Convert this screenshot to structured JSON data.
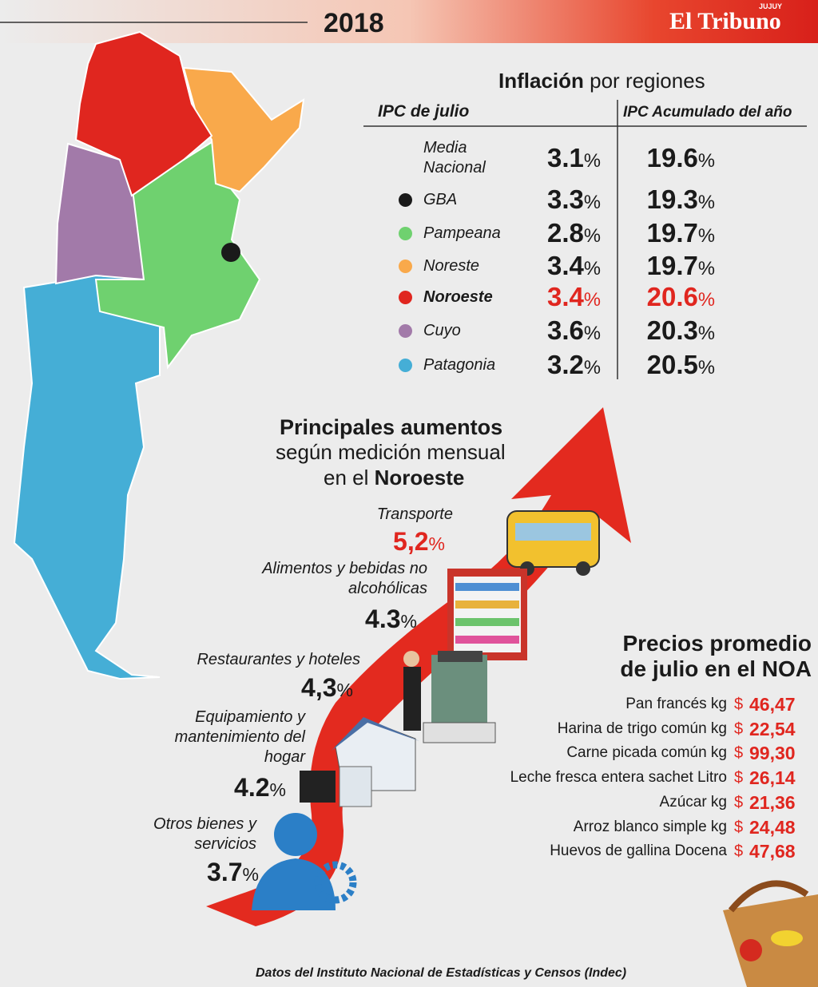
{
  "header": {
    "year": "2018",
    "brand": "El Tribuno",
    "brand_sup": "JUJUY"
  },
  "percent_sign": "%",
  "inflation": {
    "title_bold": "Inflación",
    "title_rest": "por regiones",
    "col_monthly": "IPC de julio",
    "col_annual": "IPC Acumulado del año",
    "rows": [
      {
        "name": "Media Nacional",
        "monthly": "3.1",
        "annual": "19.6"
      },
      {
        "name": "GBA",
        "color": "#1a1a1a",
        "monthly": "3.3",
        "annual": "19.3"
      },
      {
        "name": "Pampeana",
        "color": "#6fd16f",
        "monthly": "2.8",
        "annual": "19.7"
      },
      {
        "name": "Noreste",
        "color": "#f9a94b",
        "monthly": "3.4",
        "annual": "19.7"
      },
      {
        "name": "Noroeste",
        "color": "#e0261f",
        "monthly": "3.4",
        "annual": "20.6",
        "highlight": true
      },
      {
        "name": "Cuyo",
        "color": "#a27aa9",
        "monthly": "3.6",
        "annual": "20.3"
      },
      {
        "name": "Patagonia",
        "color": "#45aed6",
        "monthly": "3.2",
        "annual": "20.5"
      }
    ]
  },
  "increases": {
    "title": "Principales aumentos",
    "subtitle": "según medición mensual",
    "subtitle2": "en el",
    "subtitle2_bold": "Noroeste",
    "items": [
      {
        "label": "Transporte",
        "value": "5,2"
      },
      {
        "label": "Alimentos y bebidas no alcohólicas",
        "value": "4.3"
      },
      {
        "label": "Restaurantes y hoteles",
        "value": "4,3"
      },
      {
        "label": "Equipamiento y mantenimiento del hogar",
        "value": "4.2"
      },
      {
        "label": "Otros bienes y servicios",
        "value": "3.7"
      }
    ]
  },
  "prices": {
    "title": "Precios promedio",
    "title2": "de julio en el NOA",
    "currency": "$",
    "items": [
      {
        "name": "Pan francés kg",
        "price": "46,47"
      },
      {
        "name": "Harina de trigo común kg",
        "price": "22,54"
      },
      {
        "name": "Carne picada común kg",
        "price": "99,30"
      },
      {
        "name": "Leche fresca entera sachet Litro",
        "price": "26,14"
      },
      {
        "name": "Azúcar kg",
        "price": "21,36"
      },
      {
        "name": "Arroz blanco simple kg",
        "price": "24,48"
      },
      {
        "name": "Huevos de gallina Docena",
        "price": "47,68"
      }
    ]
  },
  "footer": {
    "source": "Datos del  Instituto Nacional de Estadísticas y Censos (Indec)"
  }
}
